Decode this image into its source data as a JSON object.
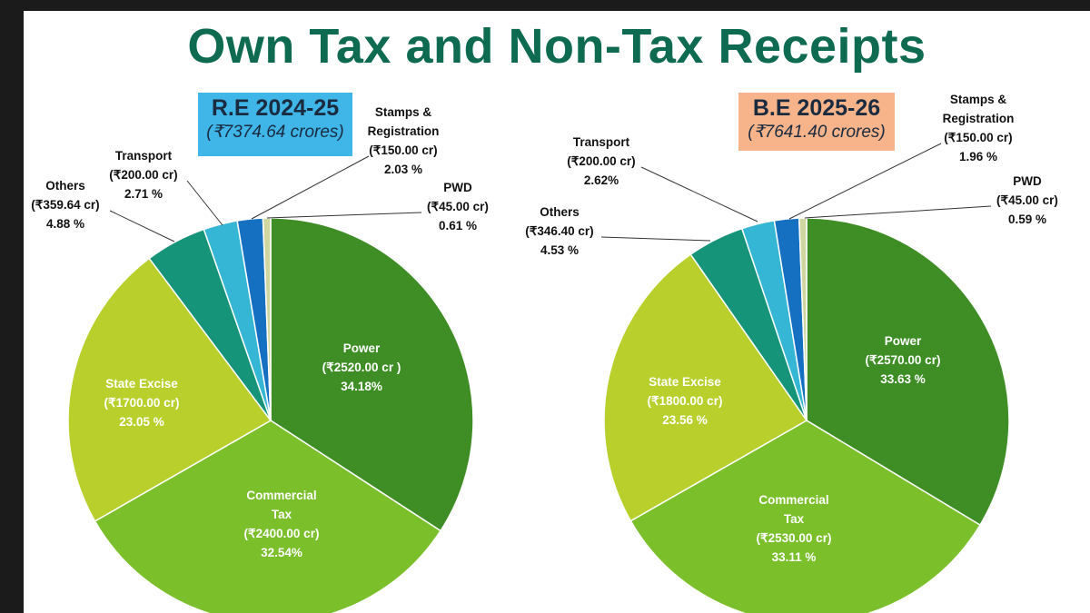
{
  "title": "Own Tax and Non-Tax Receipts",
  "colors": {
    "title": "#0e6b52",
    "power": "#3e8e25",
    "commercial_tax": "#7bbf2a",
    "state_excise": "#b8cf2c",
    "others": "#15947a",
    "transport": "#35b6d4",
    "stamps_registration": "#1670c2",
    "pwd": "#cfd6a0",
    "box_re": "#3fb5e8",
    "box_be": "#f7b48a"
  },
  "chart_data": [
    {
      "type": "pie",
      "title": "R.E 2024-25",
      "subtitle": "(₹7374.64 crores)",
      "unit": "₹ crores",
      "slices": [
        {
          "key": "power",
          "label": "Power",
          "value": 2520.0,
          "value_text": "(₹2520.00 cr )",
          "percent_text": "34.18%"
        },
        {
          "key": "commercial_tax",
          "label": "Commercial Tax",
          "value": 2400.0,
          "value_text": "(₹2400.00 cr)",
          "percent_text": "32.54%"
        },
        {
          "key": "state_excise",
          "label": "State Excise",
          "value": 1700.0,
          "value_text": "(₹1700.00 cr)",
          "percent_text": "23.05 %"
        },
        {
          "key": "others",
          "label": "Others",
          "value": 359.64,
          "value_text": "(₹359.64 cr)",
          "percent_text": "4.88 %"
        },
        {
          "key": "transport",
          "label": "Transport",
          "value": 200.0,
          "value_text": "(₹200.00 cr)",
          "percent_text": "2.71 %"
        },
        {
          "key": "stamps_registration",
          "label": "Stamps & Registration",
          "value": 150.0,
          "value_text": "(₹150.00 cr)",
          "percent_text": "2.03 %"
        },
        {
          "key": "pwd",
          "label": "PWD",
          "value": 45.0,
          "value_text": "(₹45.00 cr)",
          "percent_text": "0.61 %"
        }
      ]
    },
    {
      "type": "pie",
      "title": "B.E 2025-26",
      "subtitle": "(₹7641.40 crores)",
      "unit": "₹ crores",
      "slices": [
        {
          "key": "power",
          "label": "Power",
          "value": 2570.0,
          "value_text": "(₹2570.00 cr)",
          "percent_text": "33.63 %"
        },
        {
          "key": "commercial_tax",
          "label": "Commercial Tax",
          "value": 2530.0,
          "value_text": "(₹2530.00 cr)",
          "percent_text": "33.11 %"
        },
        {
          "key": "state_excise",
          "label": "State Excise",
          "value": 1800.0,
          "value_text": "(₹1800.00 cr)",
          "percent_text": "23.56 %"
        },
        {
          "key": "others",
          "label": "Others",
          "value": 346.4,
          "value_text": "(₹346.40 cr)",
          "percent_text": "4.53 %"
        },
        {
          "key": "transport",
          "label": "Transport",
          "value": 200.0,
          "value_text": "(₹200.00 cr)",
          "percent_text": "2.62%"
        },
        {
          "key": "stamps_registration",
          "label": "Stamps & Registration",
          "value": 150.0,
          "value_text": "(₹150.00 cr)",
          "percent_text": "1.96 %"
        },
        {
          "key": "pwd",
          "label": "PWD",
          "value": 45.0,
          "value_text": "(₹45.00 cr)",
          "percent_text": "0.59 %"
        }
      ]
    }
  ]
}
